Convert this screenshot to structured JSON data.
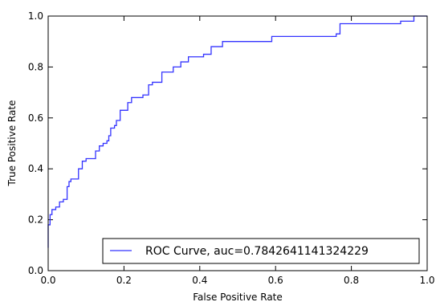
{
  "colors": {
    "curve": "#3333ff",
    "axes": "#000000",
    "background": "#ffffff"
  },
  "chart_data": {
    "type": "line",
    "title": "",
    "xlabel": "False Positive Rate",
    "ylabel": "True Positive Rate",
    "xlim": [
      0.0,
      1.0
    ],
    "ylim": [
      0.0,
      1.0
    ],
    "xticks": [
      0.0,
      0.2,
      0.4,
      0.6,
      0.8,
      1.0
    ],
    "yticks": [
      0.0,
      0.2,
      0.4,
      0.6,
      0.8,
      1.0
    ],
    "xtick_labels": [
      "0.0",
      "0.2",
      "0.4",
      "0.6",
      "0.8",
      "1.0"
    ],
    "ytick_labels": [
      "0.0",
      "0.2",
      "0.4",
      "0.6",
      "0.8",
      "1.0"
    ],
    "grid": false,
    "legend": {
      "placement": "lower-right",
      "entries": [
        "ROC Curve, auc=0.7842641141324229"
      ]
    },
    "series": [
      {
        "name": "ROC Curve, auc=0.7842641141324229",
        "x": [
          0.0,
          0.0,
          0.005,
          0.005,
          0.01,
          0.01,
          0.02,
          0.02,
          0.03,
          0.03,
          0.04,
          0.04,
          0.05,
          0.05,
          0.055,
          0.055,
          0.06,
          0.06,
          0.08,
          0.08,
          0.09,
          0.09,
          0.1,
          0.1,
          0.125,
          0.125,
          0.135,
          0.135,
          0.145,
          0.145,
          0.155,
          0.155,
          0.16,
          0.16,
          0.165,
          0.165,
          0.175,
          0.175,
          0.18,
          0.18,
          0.19,
          0.19,
          0.21,
          0.21,
          0.22,
          0.22,
          0.25,
          0.25,
          0.265,
          0.265,
          0.275,
          0.275,
          0.3,
          0.3,
          0.33,
          0.33,
          0.35,
          0.35,
          0.37,
          0.37,
          0.41,
          0.41,
          0.43,
          0.43,
          0.43,
          0.46,
          0.46,
          0.59,
          0.59,
          0.76,
          0.76,
          0.77,
          0.77,
          0.93,
          0.93,
          0.965,
          0.965,
          1.0
        ],
        "y": [
          0.09,
          0.18,
          0.18,
          0.22,
          0.22,
          0.24,
          0.24,
          0.25,
          0.25,
          0.27,
          0.27,
          0.28,
          0.28,
          0.33,
          0.33,
          0.35,
          0.35,
          0.36,
          0.36,
          0.4,
          0.4,
          0.43,
          0.43,
          0.44,
          0.44,
          0.47,
          0.47,
          0.49,
          0.49,
          0.5,
          0.5,
          0.51,
          0.51,
          0.53,
          0.53,
          0.56,
          0.56,
          0.57,
          0.57,
          0.59,
          0.59,
          0.63,
          0.63,
          0.66,
          0.66,
          0.68,
          0.68,
          0.69,
          0.69,
          0.73,
          0.73,
          0.74,
          0.74,
          0.78,
          0.78,
          0.8,
          0.8,
          0.82,
          0.82,
          0.84,
          0.84,
          0.85,
          0.85,
          0.88,
          0.88,
          0.88,
          0.9,
          0.9,
          0.92,
          0.92,
          0.93,
          0.93,
          0.97,
          0.97,
          0.98,
          0.98,
          1.0,
          1.0
        ]
      }
    ]
  }
}
